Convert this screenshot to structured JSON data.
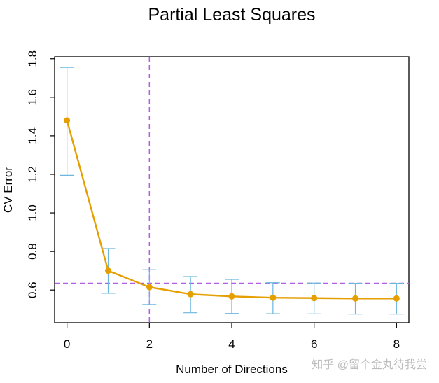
{
  "chart_data": {
    "type": "line",
    "title": "Partial Least Squares",
    "xlabel": "Number of  Directions",
    "ylabel": "CV Error",
    "x": [
      0,
      1,
      2,
      3,
      4,
      5,
      6,
      7,
      8
    ],
    "series": [
      {
        "values": [
          1.48,
          0.7,
          0.615,
          0.578,
          0.567,
          0.56,
          0.558,
          0.556,
          0.556
        ],
        "error_upper": [
          1.755,
          0.815,
          0.705,
          0.67,
          0.655,
          0.638,
          0.636,
          0.635,
          0.635
        ],
        "error_lower": [
          1.195,
          0.583,
          0.525,
          0.482,
          0.478,
          0.477,
          0.476,
          0.475,
          0.475
        ],
        "line_color": "#E69F00",
        "errorbar_color": "#6BB7DE"
      }
    ],
    "xlim": [
      -0.3,
      8.3
    ],
    "ylim": [
      0.43,
      1.81
    ],
    "x_ticks": [
      0,
      2,
      4,
      6,
      8
    ],
    "y_ticks": [
      0.6,
      0.8,
      1.0,
      1.2,
      1.4,
      1.6,
      1.8
    ],
    "x_tick_labels": [
      "0",
      "2",
      "4",
      "6",
      "8"
    ],
    "y_tick_labels": [
      "0.6",
      "0.8",
      "1.0",
      "1.2",
      "1.4",
      "1.6",
      "1.8"
    ],
    "reference_lines": {
      "vertical_x": 2,
      "horizontal_y": 0.635,
      "color": "#B15FE3",
      "style": "dashed"
    },
    "grid": false,
    "legend": "none"
  },
  "watermark": "知乎 @留个金丸待我尝"
}
